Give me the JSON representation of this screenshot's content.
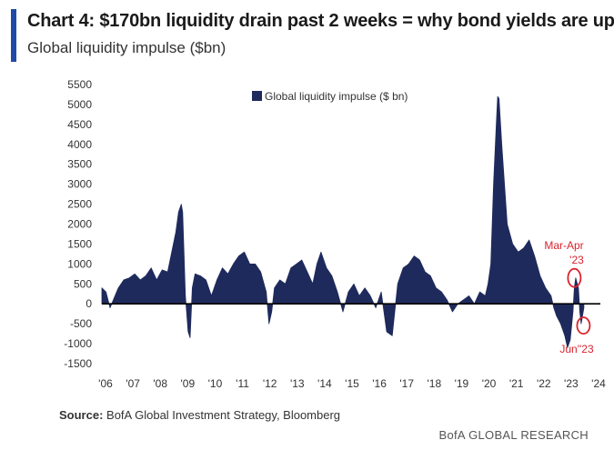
{
  "header": {
    "title": "Chart 4: $170bn liquidity drain past 2 weeks = why bond yields are up",
    "subtitle": "Global liquidity impulse ($bn)"
  },
  "footer": {
    "source_label": "Source:",
    "source_text": "BofA Global Investment Strategy, Bloomberg",
    "brand": "BofA GLOBAL RESEARCH"
  },
  "colors": {
    "accent": "#1f4aa8",
    "series": "#1f2a5c",
    "highlight": "#d9232e"
  },
  "chart_data": {
    "type": "area",
    "title": "Global liquidity impulse ($bn)",
    "xlabel": "",
    "ylabel": "",
    "legend_position": "top-center",
    "grid": false,
    "xlim": [
      2006.0,
      2024.2
    ],
    "ylim": [
      -1500,
      5500
    ],
    "y_ticks": [
      -1500,
      -1000,
      -500,
      0,
      500,
      1000,
      1500,
      2000,
      2500,
      3000,
      3500,
      4000,
      4500,
      5000,
      5500
    ],
    "x_ticks": [
      {
        "x": 2006,
        "label": "'06"
      },
      {
        "x": 2007,
        "label": "'07"
      },
      {
        "x": 2008,
        "label": "'08"
      },
      {
        "x": 2009,
        "label": "'09"
      },
      {
        "x": 2010,
        "label": "'10"
      },
      {
        "x": 2011,
        "label": "'11"
      },
      {
        "x": 2012,
        "label": "'12"
      },
      {
        "x": 2013,
        "label": "'13"
      },
      {
        "x": 2014,
        "label": "'14"
      },
      {
        "x": 2015,
        "label": "'15"
      },
      {
        "x": 2016,
        "label": "'16"
      },
      {
        "x": 2017,
        "label": "'17"
      },
      {
        "x": 2018,
        "label": "'18"
      },
      {
        "x": 2019,
        "label": "'19"
      },
      {
        "x": 2020,
        "label": "'20"
      },
      {
        "x": 2021,
        "label": "'21"
      },
      {
        "x": 2022,
        "label": "'22"
      },
      {
        "x": 2023,
        "label": "'23"
      },
      {
        "x": 2024,
        "label": "'24"
      }
    ],
    "series": [
      {
        "name": "Global liquidity impulse ($ bn)",
        "x": [
          2006.0,
          2006.15,
          2006.3,
          2006.45,
          2006.6,
          2006.8,
          2007.0,
          2007.2,
          2007.4,
          2007.6,
          2007.8,
          2008.0,
          2008.2,
          2008.4,
          2008.55,
          2008.7,
          2008.8,
          2008.9,
          2008.95,
          2009.05,
          2009.15,
          2009.22,
          2009.3,
          2009.4,
          2009.6,
          2009.8,
          2010.0,
          2010.2,
          2010.4,
          2010.6,
          2010.8,
          2011.0,
          2011.2,
          2011.4,
          2011.6,
          2011.8,
          2012.0,
          2012.1,
          2012.2,
          2012.3,
          2012.5,
          2012.7,
          2012.9,
          2013.1,
          2013.3,
          2013.5,
          2013.7,
          2013.85,
          2014.0,
          2014.2,
          2014.4,
          2014.6,
          2014.8,
          2015.0,
          2015.2,
          2015.4,
          2015.6,
          2015.8,
          2016.0,
          2016.2,
          2016.4,
          2016.6,
          2016.8,
          2017.0,
          2017.2,
          2017.4,
          2017.6,
          2017.8,
          2018.0,
          2018.2,
          2018.4,
          2018.6,
          2018.8,
          2019.0,
          2019.2,
          2019.4,
          2019.6,
          2019.8,
          2020.0,
          2020.1,
          2020.2,
          2020.3,
          2020.4,
          2020.45,
          2020.5,
          2020.6,
          2020.7,
          2020.8,
          2021.0,
          2021.2,
          2021.4,
          2021.6,
          2021.8,
          2022.0,
          2022.2,
          2022.4,
          2022.5,
          2022.6,
          2022.75,
          2022.9,
          2023.0,
          2023.1,
          2023.2,
          2023.25,
          2023.3,
          2023.4,
          2023.45,
          2023.5,
          2023.6
        ],
        "values": [
          400,
          300,
          -100,
          150,
          400,
          600,
          650,
          750,
          600,
          700,
          900,
          600,
          850,
          800,
          1300,
          1800,
          2300,
          2500,
          2300,
          200,
          -700,
          -850,
          400,
          750,
          700,
          600,
          200,
          600,
          900,
          750,
          1000,
          1200,
          1300,
          1000,
          1000,
          800,
          300,
          -500,
          -200,
          400,
          600,
          500,
          900,
          1000,
          1100,
          800,
          500,
          1000,
          1300,
          900,
          700,
          300,
          -200,
          300,
          500,
          200,
          400,
          200,
          -100,
          300,
          -700,
          -800,
          500,
          900,
          1000,
          1200,
          1100,
          800,
          700,
          400,
          300,
          100,
          -200,
          0,
          100,
          200,
          0,
          300,
          200,
          500,
          1000,
          3000,
          4500,
          5200,
          5150,
          4000,
          3000,
          2000,
          1500,
          1300,
          1400,
          1600,
          1200,
          700,
          400,
          200,
          -100,
          -300,
          -500,
          -800,
          -1100,
          -900,
          -200,
          400,
          650,
          400,
          -200,
          -500,
          -100
        ]
      }
    ],
    "annotations": [
      {
        "text": "Mar-Apr '23",
        "x": 2023.25,
        "y": 650
      },
      {
        "text": "Jun''23",
        "x": 2023.45,
        "y": -500
      }
    ]
  }
}
